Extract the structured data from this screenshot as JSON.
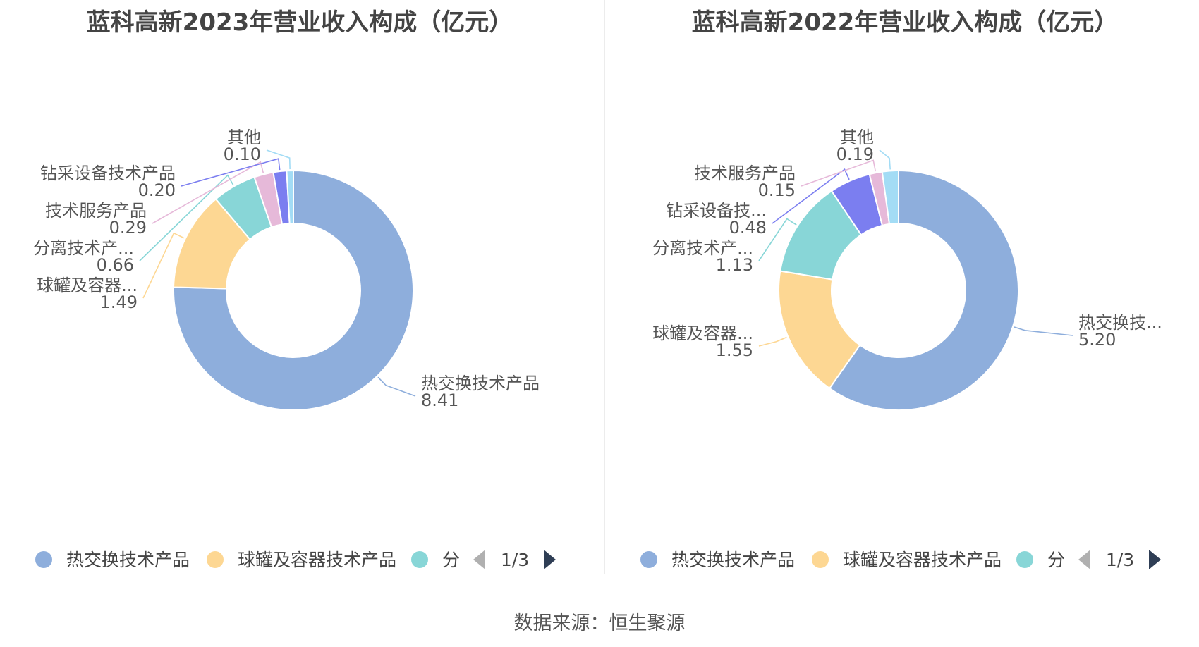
{
  "source_text": "数据来源：恒生聚源",
  "chart_data": [
    {
      "type": "pie",
      "title": "蓝科高新2023年营业收入构成（亿元）",
      "slices": [
        {
          "name": "热交换技术产品",
          "label": "热交换技术产品",
          "value": 8.41,
          "value_text": "8.41",
          "color": "#8eaedc"
        },
        {
          "name": "球罐及容器技术产品",
          "label": "球罐及容器...",
          "value": 1.49,
          "value_text": "1.49",
          "color": "#fdd793"
        },
        {
          "name": "分离技术产品",
          "label": "分离技术产...",
          "value": 0.66,
          "value_text": "0.66",
          "color": "#88d6d7"
        },
        {
          "name": "技术服务产品",
          "label": "技术服务产品",
          "value": 0.29,
          "value_text": "0.29",
          "color": "#e6b9d9"
        },
        {
          "name": "钻采设备技术产品",
          "label": "钻采设备技术产品",
          "value": 0.2,
          "value_text": "0.20",
          "color": "#7b7ef0"
        },
        {
          "name": "其他",
          "label": "其他",
          "value": 0.1,
          "value_text": "0.10",
          "color": "#a3dcf5"
        }
      ],
      "legend": {
        "items": [
          {
            "label": "热交换技术产品",
            "color": "#8eaedc"
          },
          {
            "label": "球罐及容器技术产品",
            "color": "#fdd793"
          },
          {
            "label": "分",
            "color": "#88d6d7"
          }
        ],
        "page_text": "1/3",
        "placement": "bottom"
      }
    },
    {
      "type": "pie",
      "title": "蓝科高新2022年营业收入构成（亿元）",
      "slices": [
        {
          "name": "热交换技术产品",
          "label": "热交换技...",
          "value": 5.2,
          "value_text": "5.20",
          "color": "#8eaedc"
        },
        {
          "name": "球罐及容器技术产品",
          "label": "球罐及容器...",
          "value": 1.55,
          "value_text": "1.55",
          "color": "#fdd793"
        },
        {
          "name": "分离技术产品",
          "label": "分离技术产...",
          "value": 1.13,
          "value_text": "1.13",
          "color": "#88d6d7"
        },
        {
          "name": "钻采设备技术产品",
          "label": "钻采设备技...",
          "value": 0.48,
          "value_text": "0.48",
          "color": "#7b7ef0"
        },
        {
          "name": "技术服务产品",
          "label": "技术服务产品",
          "value": 0.15,
          "value_text": "0.15",
          "color": "#e6b9d9"
        },
        {
          "name": "其他",
          "label": "其他",
          "value": 0.19,
          "value_text": "0.19",
          "color": "#a3dcf5"
        }
      ],
      "legend": {
        "items": [
          {
            "label": "热交换技术产品",
            "color": "#8eaedc"
          },
          {
            "label": "球罐及容器技术产品",
            "color": "#fdd793"
          },
          {
            "label": "分",
            "color": "#88d6d7"
          }
        ],
        "page_text": "1/3",
        "placement": "bottom"
      }
    }
  ]
}
